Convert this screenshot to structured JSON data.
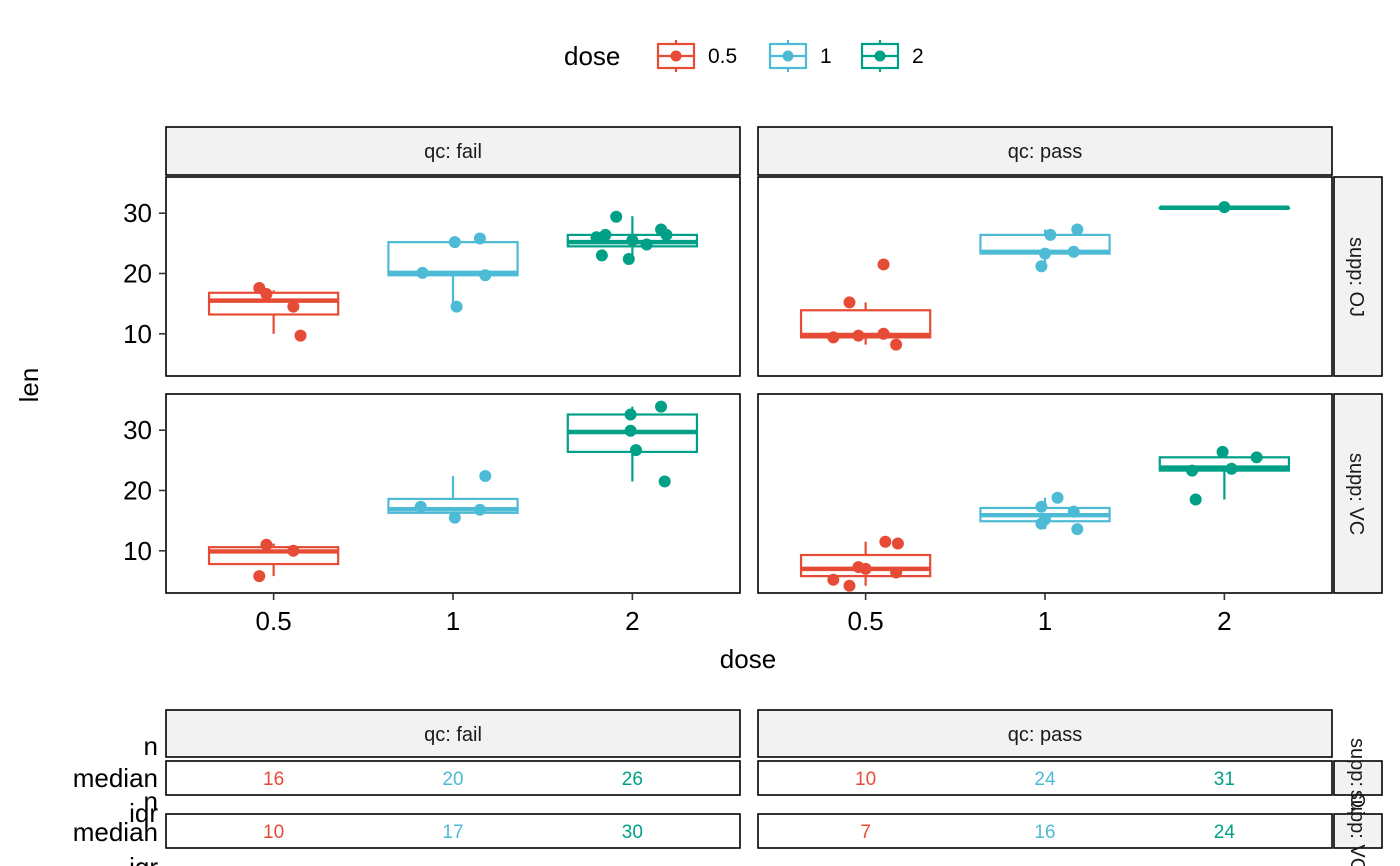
{
  "chart_data": {
    "type": "boxplot",
    "title": "",
    "xlabel": "dose",
    "ylabel": "len",
    "ylim": [
      3,
      36
    ],
    "yticks": [
      10,
      20,
      30
    ],
    "legend": {
      "title": "dose",
      "placement": "top",
      "entries": [
        {
          "label": "0.5",
          "color": "#E64B35"
        },
        {
          "label": "1",
          "color": "#4DBBD5"
        },
        {
          "label": "2",
          "color": "#00A087"
        }
      ]
    },
    "categories": [
      "0.5",
      "1",
      "2"
    ],
    "facet_cols": [
      "qc: fail",
      "qc: pass"
    ],
    "facet_rows": [
      "supp: OJ",
      "supp: VC"
    ],
    "panels": [
      {
        "col": 0,
        "row": 0,
        "groups": [
          {
            "dose": "0.5",
            "min": 10,
            "q1": 13.2,
            "median": 15.5,
            "q3": 16.8,
            "max": 17.2,
            "points": [
              [
                -0.08,
                17.6
              ],
              [
                -0.04,
                16.6
              ],
              [
                0.11,
                14.5
              ],
              [
                0.15,
                9.7
              ]
            ]
          },
          {
            "dose": "1",
            "min": 14.5,
            "q1": 19.7,
            "median": 20.1,
            "q3": 25.2,
            "max": 25.8,
            "points": [
              [
                -0.17,
                20.1
              ],
              [
                0.01,
                25.2
              ],
              [
                0.15,
                25.8
              ],
              [
                0.18,
                19.7
              ],
              [
                0.02,
                14.5
              ]
            ]
          },
          {
            "dose": "2",
            "min": 22.4,
            "q1": 24.5,
            "median": 25.2,
            "q3": 26.4,
            "max": 29.5,
            "points": [
              [
                -0.17,
                23.0
              ],
              [
                -0.15,
                26.4
              ],
              [
                -0.09,
                29.4
              ],
              [
                -0.02,
                22.4
              ],
              [
                0.0,
                25.5
              ],
              [
                0.08,
                24.8
              ],
              [
                0.16,
                27.3
              ],
              [
                0.19,
                26.4
              ],
              [
                -0.2,
                26.0
              ]
            ]
          }
        ]
      },
      {
        "col": 0,
        "row": 1,
        "groups": [
          {
            "dose": "0.5",
            "min": 5.8,
            "q1": 7.8,
            "median": 9.9,
            "q3": 10.6,
            "max": 11.2,
            "points": [
              [
                -0.08,
                5.8
              ],
              [
                -0.04,
                11.0
              ],
              [
                0.11,
                10.0
              ]
            ]
          },
          {
            "dose": "1",
            "min": 15.5,
            "q1": 16.3,
            "median": 16.9,
            "q3": 18.6,
            "max": 22.4,
            "points": [
              [
                -0.18,
                17.3
              ],
              [
                0.01,
                15.5
              ],
              [
                0.15,
                16.8
              ],
              [
                0.18,
                22.4
              ]
            ]
          },
          {
            "dose": "2",
            "min": 21.5,
            "q1": 26.4,
            "median": 29.7,
            "q3": 32.6,
            "max": 33.9,
            "points": [
              [
                -0.01,
                32.6
              ],
              [
                -0.01,
                29.9
              ],
              [
                0.02,
                26.7
              ],
              [
                0.16,
                33.9
              ],
              [
                0.18,
                21.5
              ]
            ]
          }
        ]
      },
      {
        "col": 1,
        "row": 0,
        "groups": [
          {
            "dose": "0.5",
            "min": 8.2,
            "q1": 9.4,
            "median": 9.8,
            "q3": 13.9,
            "max": 15.2,
            "points": [
              [
                -0.18,
                9.4
              ],
              [
                -0.09,
                15.2
              ],
              [
                -0.04,
                9.7
              ],
              [
                0.1,
                10.0
              ],
              [
                0.17,
                8.2
              ],
              [
                0.1,
                21.5
              ]
            ]
          },
          {
            "dose": "1",
            "min": 21.2,
            "q1": 23.3,
            "median": 23.6,
            "q3": 26.4,
            "max": 27.3,
            "points": [
              [
                -0.02,
                21.2
              ],
              [
                0.0,
                23.3
              ],
              [
                0.03,
                26.4
              ],
              [
                0.16,
                23.6
              ],
              [
                0.18,
                27.3
              ]
            ]
          },
          {
            "dose": "2",
            "min": 30.9,
            "q1": 30.9,
            "median": 30.9,
            "q3": 30.9,
            "max": 30.9,
            "points": [
              [
                0.0,
                31.0
              ]
            ]
          }
        ]
      },
      {
        "col": 1,
        "row": 1,
        "groups": [
          {
            "dose": "0.5",
            "min": 4.2,
            "q1": 5.8,
            "median": 7.0,
            "q3": 9.3,
            "max": 11.5,
            "points": [
              [
                -0.18,
                5.2
              ],
              [
                -0.09,
                4.2
              ],
              [
                -0.04,
                7.3
              ],
              [
                0.0,
                7.0
              ],
              [
                0.11,
                11.5
              ],
              [
                0.18,
                11.2
              ],
              [
                0.17,
                6.4
              ]
            ]
          },
          {
            "dose": "1",
            "min": 13.6,
            "q1": 14.9,
            "median": 15.9,
            "q3": 17.1,
            "max": 18.8,
            "points": [
              [
                -0.02,
                17.3
              ],
              [
                -0.02,
                14.5
              ],
              [
                0.07,
                18.8
              ],
              [
                0.16,
                16.5
              ],
              [
                0.18,
                13.6
              ],
              [
                0.0,
                15.2
              ]
            ]
          },
          {
            "dose": "2",
            "min": 18.5,
            "q1": 23.3,
            "median": 23.8,
            "q3": 25.5,
            "max": 26.4,
            "points": [
              [
                -0.18,
                23.3
              ],
              [
                -0.16,
                18.5
              ],
              [
                -0.01,
                26.4
              ],
              [
                0.04,
                23.6
              ],
              [
                0.18,
                25.5
              ]
            ]
          }
        ]
      }
    ]
  },
  "table": {
    "row_labels": [
      "n",
      "median",
      "iqr"
    ],
    "stripe_label_a": "supp: OJ",
    "stripe_label_b": "supp: VC",
    "panels": [
      {
        "col": 0,
        "row": 0,
        "values": [
          "16",
          "20",
          "26"
        ]
      },
      {
        "col": 1,
        "row": 0,
        "values": [
          "10",
          "24",
          "31"
        ]
      },
      {
        "col": 0,
        "row": 1,
        "values": [
          "10",
          "17",
          "30"
        ]
      },
      {
        "col": 1,
        "row": 1,
        "values": [
          "7",
          "16",
          "24"
        ]
      }
    ]
  }
}
